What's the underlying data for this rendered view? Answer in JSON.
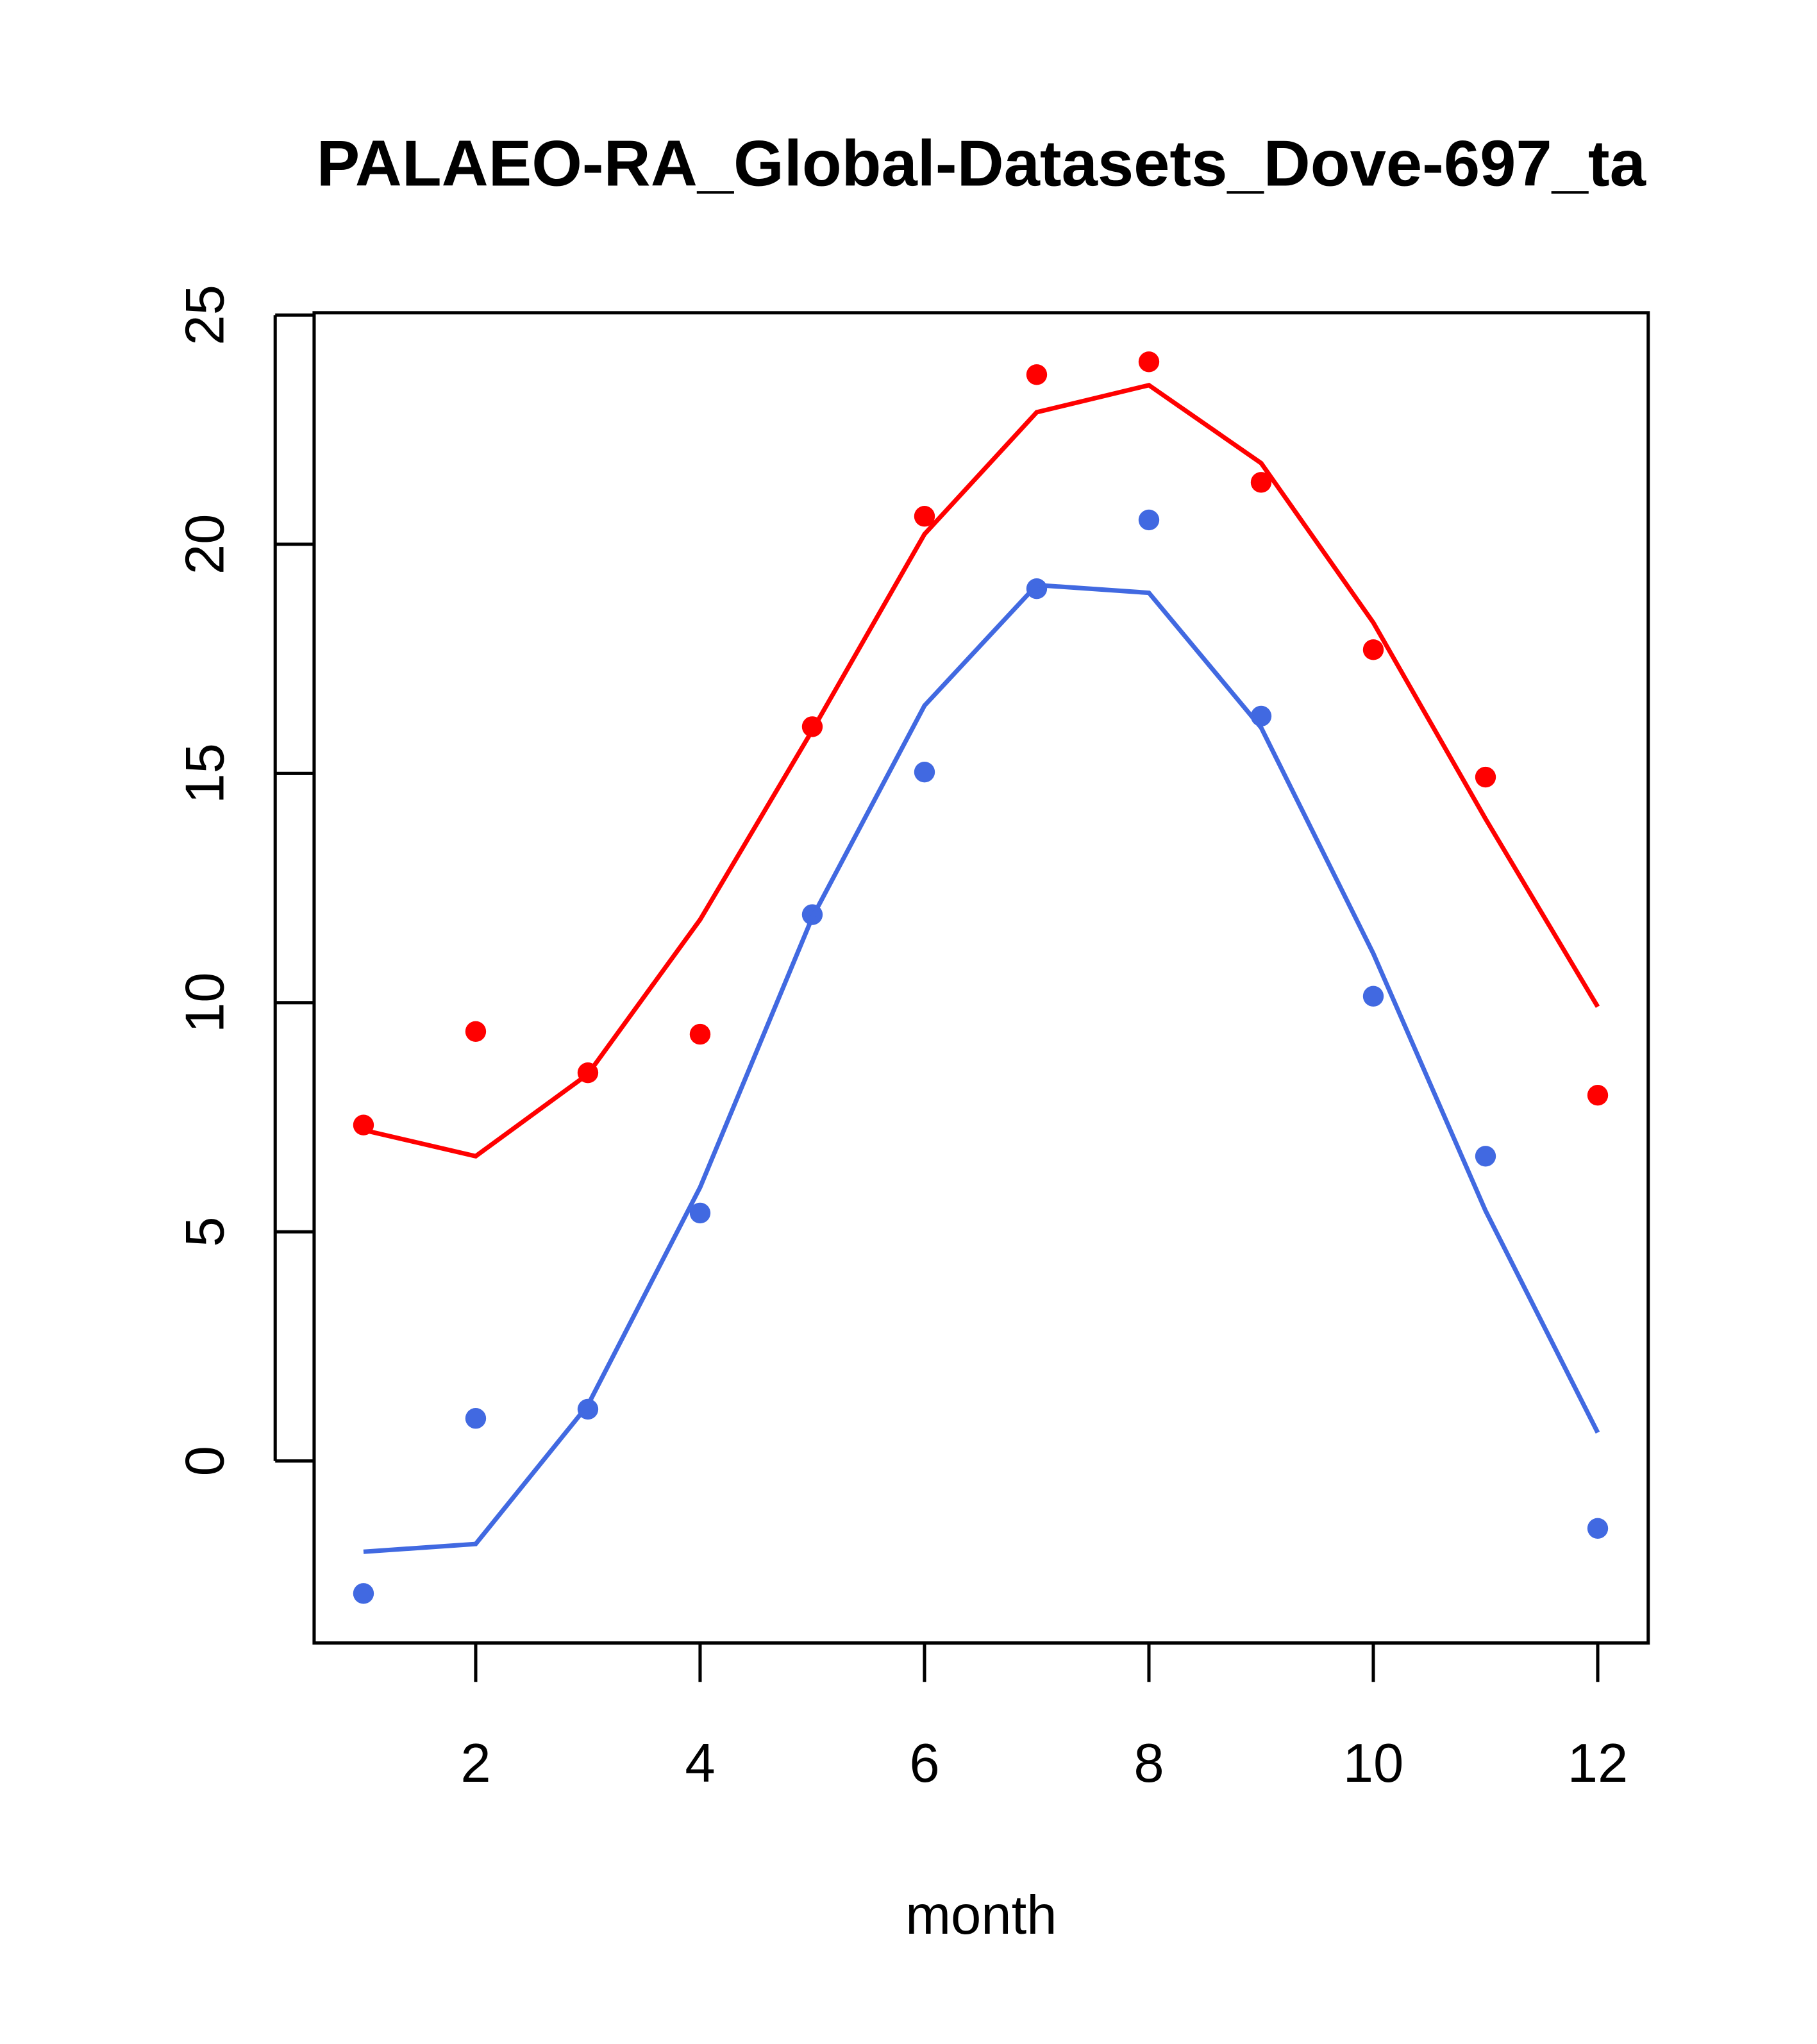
{
  "chart_data": {
    "type": "line",
    "title": "PALAEO-RA_Global-Datasets_Dove-697_ta",
    "xlabel": "month",
    "ylabel": "",
    "xlim": [
      0.56,
      12.45
    ],
    "ylim": [
      -3.97,
      25.05
    ],
    "xticks": [
      2,
      4,
      6,
      8,
      10,
      12
    ],
    "yticks": [
      0,
      5,
      10,
      15,
      20,
      25
    ],
    "grid": false,
    "x": [
      1,
      2,
      3,
      4,
      5,
      6,
      7,
      8,
      9,
      10,
      11,
      12
    ],
    "series": [
      {
        "name": "red points",
        "kind": "points",
        "color": "#ff0000",
        "values": [
          7.33,
          9.37,
          8.47,
          9.31,
          16.02,
          20.61,
          23.7,
          23.98,
          21.35,
          17.7,
          14.92,
          7.98
        ]
      },
      {
        "name": "red line",
        "kind": "line",
        "color": "#ff0000",
        "values": [
          7.22,
          6.65,
          8.44,
          11.81,
          15.94,
          20.22,
          22.88,
          23.47,
          21.77,
          18.29,
          14.01,
          9.91
        ]
      },
      {
        "name": "blue points",
        "kind": "points",
        "color": "#4169e1",
        "values": [
          -2.89,
          0.93,
          1.13,
          5.41,
          11.92,
          15.03,
          19.03,
          20.53,
          16.25,
          10.14,
          6.65,
          -1.47
        ]
      },
      {
        "name": "blue line",
        "kind": "line",
        "color": "#4169e1",
        "values": [
          -1.98,
          -1.81,
          1.22,
          5.97,
          11.86,
          16.48,
          19.11,
          18.94,
          16.0,
          11.07,
          5.46,
          0.62
        ]
      }
    ]
  }
}
